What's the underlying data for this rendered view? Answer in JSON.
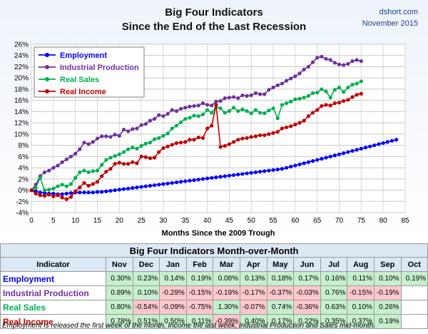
{
  "chart_data": {
    "type": "line",
    "title": "Big Four Indicators",
    "subtitle": "Since the End of the Last Recession",
    "xlabel": "Months Since the 2009 Trough",
    "ylabel": "",
    "xlim": [
      0,
      85
    ],
    "ylim": [
      -4,
      26
    ],
    "x_ticks": [
      "0",
      "5",
      "10",
      "15",
      "20",
      "25",
      "30",
      "35",
      "40",
      "45",
      "50",
      "55",
      "60",
      "65",
      "70",
      "75",
      "80",
      "85"
    ],
    "y_ticks": [
      "-4%",
      "-2%",
      "0%",
      "2%",
      "4%",
      "6%",
      "8%",
      "10%",
      "12%",
      "14%",
      "16%",
      "18%",
      "20%",
      "22%",
      "24%",
      "26%"
    ],
    "grid": true,
    "legend_position": "top-left",
    "series": [
      {
        "name": "Employment",
        "color": "#0000ff",
        "values": [
          0,
          -0.2,
          -0.4,
          -0.5,
          -0.6,
          -0.6,
          -0.7,
          -0.7,
          -0.6,
          -0.5,
          -0.4,
          -0.4,
          -0.4,
          -0.4,
          -0.4,
          -0.3,
          -0.3,
          -0.2,
          -0.1,
          0,
          0.1,
          0.2,
          0.3,
          0.4,
          0.5,
          0.6,
          0.7,
          0.8,
          0.9,
          1,
          1.1,
          1.2,
          1.3,
          1.4,
          1.5,
          1.6,
          1.7,
          1.8,
          1.9,
          2,
          2.1,
          2.2,
          2.3,
          2.4,
          2.5,
          2.6,
          2.7,
          2.8,
          2.9,
          3,
          3.1,
          3.2,
          3.3,
          3.4,
          3.5,
          3.6,
          3.7,
          3.8,
          4,
          4.2,
          4.4,
          4.6,
          4.8,
          5,
          5.2,
          5.4,
          5.6,
          5.8,
          6,
          6.2,
          6.4,
          6.6,
          6.8,
          7,
          7.2,
          7.4,
          7.6,
          7.8,
          8,
          8.2,
          8.4,
          8.6,
          8.8,
          9.0
        ]
      },
      {
        "name": "Industrial Production",
        "color": "#7030a0",
        "values": [
          0,
          1,
          2.5,
          3.2,
          3.5,
          4,
          4.4,
          5,
          5.5,
          6,
          6.5,
          7.3,
          8.5,
          8.2,
          8.6,
          9.2,
          9.6,
          9.6,
          9.5,
          9.9,
          9.7,
          10.8,
          10.5,
          10.9,
          11,
          11.6,
          11.8,
          12.4,
          12.7,
          13.4,
          13.2,
          13.6,
          14.3,
          14.1,
          14.5,
          14.7,
          14.9,
          15,
          15.1,
          15.5,
          15.2,
          15.1,
          15.8,
          15.9,
          16.4,
          16.5,
          16.6,
          16.4,
          16.9,
          16.8,
          16.9,
          17.3,
          17.1,
          17.1,
          17.9,
          18.3,
          18.7,
          19,
          19.5,
          19.9,
          20.3,
          20.8,
          21.5,
          22,
          22.8,
          23.6,
          23.8,
          23.4,
          23.2,
          22.7,
          22.4,
          22.3,
          22.5,
          23,
          23.2,
          23
        ]
      },
      {
        "name": "Real Sales",
        "color": "#00b050",
        "values": [
          0,
          0.4,
          2.2,
          0,
          0.1,
          0.3,
          0.7,
          1,
          0.7,
          1.1,
          2.2,
          3.2,
          3.5,
          3.2,
          3.4,
          3.5,
          4.5,
          5.4,
          5.8,
          6.1,
          6.4,
          6.8,
          7.3,
          7.6,
          7.4,
          7.9,
          8.3,
          8.5,
          9.1,
          9.3,
          9.7,
          10.1,
          11,
          11.5,
          12.1,
          12.7,
          12.9,
          13.3,
          13.2,
          13.5,
          14.3,
          13.8,
          14.8,
          14.6,
          13.8,
          14.1,
          14.7,
          14.1,
          14.4,
          14.1,
          13.7,
          14.3,
          13.8,
          13.7,
          14.2,
          14.6,
          12.8,
          15.2,
          15.5,
          15.8,
          16.2,
          16.3,
          16.5,
          16.8,
          17.3,
          17.4,
          18,
          17.6,
          16.5,
          17.9,
          18.3,
          17.5,
          18.3,
          18.8,
          19,
          19.4
        ]
      },
      {
        "name": "Real Income",
        "color": "#c00000",
        "values": [
          0,
          -0.6,
          -0.9,
          -1,
          -0.8,
          -1.1,
          -0.9,
          -1.3,
          -1.6,
          -1.2,
          -0.2,
          0.5,
          1.3,
          0.8,
          1.1,
          1.5,
          2.5,
          3.3,
          3.8,
          4.7,
          4.9,
          4.7,
          4.7,
          5,
          4.8,
          6,
          5.9,
          5.7,
          5.8,
          6.8,
          7.5,
          7.8,
          8.1,
          8.4,
          8.5,
          8.6,
          9,
          9,
          9.4,
          9.3,
          11,
          11.5,
          15.2,
          7.7,
          7.9,
          8.2,
          8.6,
          9,
          9.2,
          9.3,
          9.5,
          9.6,
          9.8,
          9.8,
          10,
          10.2,
          10.4,
          11,
          11.2,
          11.4,
          11.7,
          12,
          12.4,
          13.2,
          13.8,
          14.3,
          15,
          15.2,
          15.1,
          15.5,
          15.6,
          15.9,
          16.1,
          16.6,
          17,
          17.2
        ]
      }
    ]
  },
  "header": {
    "title_line1": "Big Four Indicators",
    "title_line2": "Since the End of the Last Recession",
    "source": "dshort.com",
    "date": "November 2015"
  },
  "table": {
    "title": "Big Four Indicators Month-over-Month",
    "indicator_header": "Indicator",
    "months": [
      "Nov",
      "Dec",
      "Jan",
      "Feb",
      "Mar",
      "Apr",
      "May",
      "Jun",
      "Jul",
      "Aug",
      "Sep",
      "Oct"
    ],
    "rows": [
      {
        "label": "Employment",
        "color": "#0000ff",
        "values": [
          "0.30%",
          "0.23%",
          "0.14%",
          "0.19%",
          "0.08%",
          "0.13%",
          "0.18%",
          "0.17%",
          "0.16%",
          "0.11%",
          "0.10%",
          "0.19%"
        ]
      },
      {
        "label": "Industrial Production",
        "color": "#7030a0",
        "values": [
          "0.89%",
          "0.10%",
          "-0.29%",
          "-0.15%",
          "-0.19%",
          "-0.17%",
          "-0.37%",
          "-0.03%",
          "0.76%",
          "-0.15%",
          "-0.19%",
          ""
        ]
      },
      {
        "label": "Real Sales",
        "color": "#00b050",
        "values": [
          "0.80%",
          "-0.54%",
          "-0.09%",
          "-0.75%",
          "1.30%",
          "-0.07%",
          "0.74%",
          "-0.36%",
          "0.63%",
          "0.10%",
          "0.26%",
          ""
        ]
      },
      {
        "label": "Real Income",
        "color": "#c00000",
        "values": [
          "0.78%",
          "0.51%",
          "0.50%",
          "0.11%",
          "-0.39%",
          "0.40%",
          "0.17%",
          "0.22%",
          "0.35%",
          "0.37%",
          "0.19%",
          ""
        ]
      }
    ]
  },
  "footnote": "Employment is released the first week of the month, Income the last week, Industrial Production and Sales mid-month.",
  "colors": {
    "pos_fill": "#c6efce",
    "neg_fill": "#ffc7ce",
    "table_header": "#dde8f5"
  }
}
